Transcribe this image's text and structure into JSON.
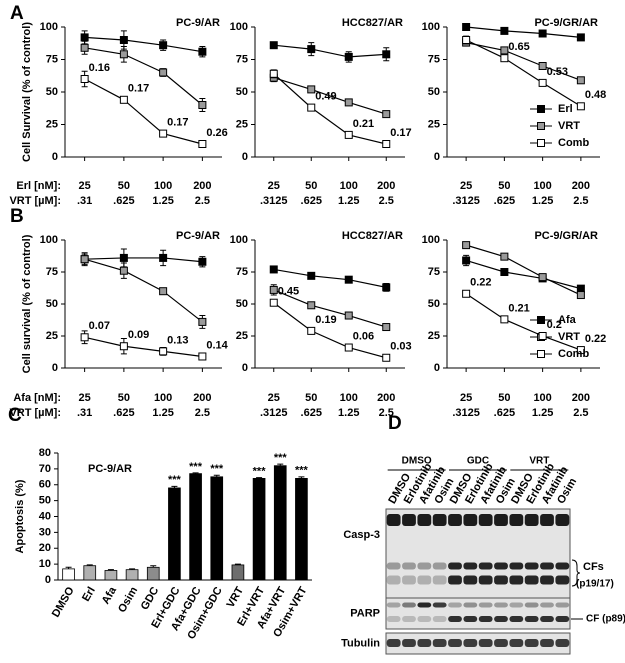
{
  "panel_labels": [
    "A",
    "B",
    "C",
    "D"
  ],
  "chart_data": [
    {
      "type": "line",
      "title": "PC-9/AR",
      "ylabel": "Cell Survival (% of control)",
      "x_label_rows": [
        "Erl [nM]:",
        "VRT [µM]:"
      ],
      "categories": [
        "25",
        "50",
        "100",
        "200"
      ],
      "categories2": [
        ".31",
        ".625",
        "1.25",
        "2.5"
      ],
      "ylim": [
        0,
        100
      ],
      "yticks": [
        0,
        25,
        50,
        75,
        100
      ],
      "series": [
        {
          "color": "#000000",
          "marker_fill": "#000000",
          "values": [
            92,
            90,
            86,
            81
          ],
          "errors": [
            5,
            7,
            4,
            4
          ]
        },
        {
          "color": "#000000",
          "marker_fill": "#9a9a9a",
          "values": [
            84,
            79,
            65,
            40
          ],
          "errors": [
            5,
            6,
            3,
            5
          ]
        },
        {
          "color": "#000000",
          "marker_fill": "#ffffff",
          "values": [
            60,
            44,
            18,
            10
          ],
          "errors": [
            6,
            2,
            2,
            1
          ],
          "annotations": [
            0.16,
            0.17,
            0.17,
            0.26
          ]
        }
      ]
    },
    {
      "type": "line",
      "title": "HCC827/AR",
      "categories": [
        "25",
        "50",
        "100",
        "200"
      ],
      "categories2": [
        ".3125",
        ".625",
        "1.25",
        "2.5"
      ],
      "ylim": [
        0,
        100
      ],
      "yticks": [
        0,
        25,
        50,
        75,
        100
      ],
      "series": [
        {
          "color": "#000000",
          "marker_fill": "#000000",
          "values": [
            86,
            83,
            77,
            79
          ],
          "errors": [
            2,
            5,
            4,
            5
          ]
        },
        {
          "color": "#000000",
          "marker_fill": "#9a9a9a",
          "values": [
            61,
            52,
            42,
            33
          ],
          "errors": [
            3,
            2,
            2,
            2
          ]
        },
        {
          "color": "#000000",
          "marker_fill": "#ffffff",
          "values": [
            64,
            38,
            17,
            10
          ],
          "errors": [
            3,
            2,
            1,
            1
          ],
          "annotations": [
            null,
            0.49,
            0.21,
            0.17
          ]
        }
      ]
    },
    {
      "type": "line",
      "title": "PC-9/GR/AR",
      "legend": "lower right",
      "categories": [
        "25",
        "50",
        "100",
        "200"
      ],
      "categories2": [
        ".3125",
        ".625",
        "1.25",
        "2.5"
      ],
      "ylim": [
        0,
        100
      ],
      "yticks": [
        0,
        25,
        50,
        75,
        100
      ],
      "series": [
        {
          "name": "Erl",
          "color": "#000000",
          "marker_fill": "#000000",
          "values": [
            100,
            97,
            95,
            92
          ],
          "errors": [
            2,
            2,
            1,
            1
          ]
        },
        {
          "name": "VRT",
          "color": "#000000",
          "marker_fill": "#9a9a9a",
          "values": [
            88,
            82,
            70,
            59
          ],
          "errors": [
            2,
            2,
            2,
            1
          ]
        },
        {
          "name": "Comb",
          "color": "#000000",
          "marker_fill": "#ffffff",
          "values": [
            90,
            76,
            57,
            39
          ],
          "errors": [
            3,
            2,
            2,
            1
          ],
          "annotations": [
            null,
            0.65,
            0.53,
            0.48
          ]
        }
      ]
    },
    {
      "type": "line",
      "title": "PC-9/AR",
      "ylabel": "Cell survival (% of control)",
      "x_label_rows": [
        "Afa [nM]:",
        "VRT [µM]:"
      ],
      "categories": [
        "25",
        "50",
        "100",
        "200"
      ],
      "categories2": [
        ".31",
        ".625",
        "1.25",
        "2.5"
      ],
      "ylim": [
        0,
        100
      ],
      "yticks": [
        0,
        25,
        50,
        75,
        100
      ],
      "series": [
        {
          "color": "#000000",
          "marker_fill": "#000000",
          "values": [
            85,
            86,
            86,
            83
          ],
          "errors": [
            4,
            7,
            6,
            4
          ]
        },
        {
          "color": "#000000",
          "marker_fill": "#9a9a9a",
          "values": [
            85,
            76,
            60,
            36
          ],
          "errors": [
            5,
            6,
            2,
            5
          ]
        },
        {
          "color": "#000000",
          "marker_fill": "#ffffff",
          "values": [
            24,
            17,
            13,
            9
          ],
          "errors": [
            5,
            6,
            3,
            2
          ],
          "annotations": [
            0.07,
            0.09,
            0.13,
            0.14
          ]
        }
      ]
    },
    {
      "type": "line",
      "title": "HCC827/AR",
      "categories": [
        "25",
        "50",
        "100",
        "200"
      ],
      "categories2": [
        ".3125",
        ".625",
        "1.25",
        "2.5"
      ],
      "ylim": [
        0,
        100
      ],
      "yticks": [
        0,
        25,
        50,
        75,
        100
      ],
      "series": [
        {
          "color": "#000000",
          "marker_fill": "#000000",
          "values": [
            77,
            72,
            69,
            63
          ],
          "errors": [
            1,
            2,
            2,
            3
          ]
        },
        {
          "color": "#000000",
          "marker_fill": "#9a9a9a",
          "values": [
            61,
            49,
            41,
            32
          ],
          "errors": [
            4,
            1,
            1,
            1
          ]
        },
        {
          "color": "#000000",
          "marker_fill": "#ffffff",
          "values": [
            51,
            29,
            16,
            8
          ],
          "errors": [
            2,
            1,
            1,
            1
          ],
          "annotations": [
            0.45,
            0.19,
            0.06,
            0.03
          ]
        }
      ]
    },
    {
      "type": "line",
      "title": "PC-9/GR/AR",
      "legend": "lower right",
      "categories": [
        "25",
        "50",
        "100",
        "200"
      ],
      "categories2": [
        ".3125",
        ".625",
        "1.25",
        "2.5"
      ],
      "ylim": [
        0,
        100
      ],
      "yticks": [
        0,
        25,
        50,
        75,
        100
      ],
      "series": [
        {
          "name": "Afa",
          "color": "#000000",
          "marker_fill": "#000000",
          "values": [
            84,
            75,
            70,
            62
          ],
          "errors": [
            4,
            2,
            2,
            2
          ]
        },
        {
          "name": "VRT",
          "color": "#000000",
          "marker_fill": "#9a9a9a",
          "values": [
            96,
            87,
            71,
            57
          ],
          "errors": [
            2,
            2,
            2,
            2
          ]
        },
        {
          "name": "Comb",
          "color": "#000000",
          "marker_fill": "#ffffff",
          "values": [
            58,
            38,
            25,
            14
          ],
          "errors": [
            2,
            2,
            1,
            1
          ],
          "annotations": [
            0.22,
            0.21,
            0.2,
            0.22
          ]
        }
      ]
    },
    {
      "type": "bar",
      "title": "PC-9/AR",
      "ylabel": "Apoptosis (%)",
      "categories": [
        "DMSO",
        "Erl",
        "Afa",
        "Osim",
        "GDC",
        "Erl+GDC",
        "Afa+GDC",
        "Osim+GDC",
        "VRT",
        "Erl+VRT",
        "Afa+VRT",
        "Osim+VRT"
      ],
      "values": [
        7,
        9,
        6,
        6.5,
        8,
        58,
        67,
        65,
        9.5,
        64,
        72,
        64
      ],
      "errors": [
        1,
        0.5,
        0.5,
        0.5,
        1,
        1,
        0.5,
        1,
        0.5,
        0.5,
        1,
        1
      ],
      "colors": [
        "#ffffff",
        "#b0b0b0",
        "#b0b0b0",
        "#b0b0b0",
        "#8c8c8c",
        "#000000",
        "#000000",
        "#000000",
        "#6e6e6e",
        "#000000",
        "#000000",
        "#000000"
      ],
      "annotations": [
        null,
        null,
        null,
        null,
        null,
        "***",
        "***",
        "***",
        null,
        "***",
        "***",
        "***"
      ],
      "ylim": [
        0,
        80
      ],
      "yticks": [
        0,
        10,
        20,
        30,
        40,
        50,
        60,
        70,
        80
      ]
    }
  ],
  "blot": {
    "groups": [
      "DMSO",
      "GDC",
      "VRT"
    ],
    "lanes": [
      "DMSO",
      "Erlotinib",
      "Afatinib",
      "Osim",
      "DMSO",
      "Erlotinib",
      "Afatinib",
      "Osim",
      "DMSO",
      "Erlotinib",
      "Afatinib",
      "Osim"
    ],
    "rows": [
      "Casp-3",
      "PARP",
      "Tubulin"
    ],
    "cleaved_casp3": [
      "CFs",
      "(p19/17)"
    ],
    "cleaved_parp": "CF (p89)"
  }
}
